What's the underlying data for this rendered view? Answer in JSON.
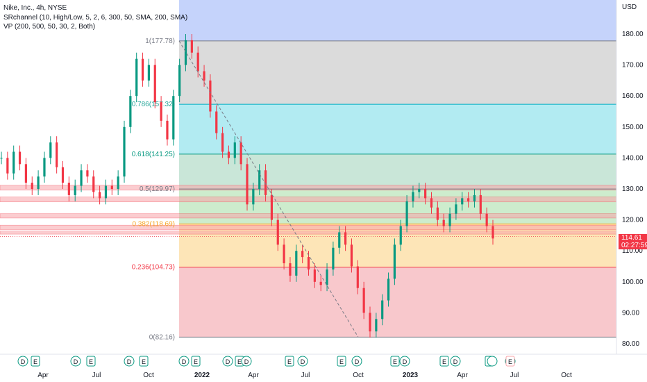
{
  "header": {
    "title": "Nike, Inc., 4h, NYSE",
    "indicator1": "SRchannel (10, High/Low, 5, 2, 6, 300, 50, SMA, 200, SMA)",
    "indicator2": "VP (200, 500, 50, 30, 2, Both)"
  },
  "axis": {
    "currency": "USD",
    "y_ticks": [
      "180.00",
      "170.00",
      "160.00",
      "150.00",
      "140.00",
      "130.00",
      "120.00",
      "110.00",
      "100.00",
      "90.00",
      "80.00"
    ],
    "x_ticks": [
      "Apr",
      "Jul",
      "Oct",
      "2022",
      "Apr",
      "Jul",
      "Oct",
      "2023",
      "Apr",
      "Jul",
      "Oct"
    ]
  },
  "last_price": {
    "value": "114.61",
    "countdown": "02:27:59",
    "color": "#f23645"
  },
  "fib_levels": [
    {
      "label": "1(177.78)",
      "price": 177.78,
      "label_color": "#787b86",
      "line_color": "#787b86",
      "fill": "#dbdbdb"
    },
    {
      "label": "0.786(157.32)",
      "price": 157.32,
      "label_color": "#26a69a",
      "line_color": "#00acc1",
      "fill": "#b2ebf2"
    },
    {
      "label": "0.618(141.25)",
      "price": 141.25,
      "label_color": "#089981",
      "line_color": "#089981",
      "fill": "#c9e6d8"
    },
    {
      "label": "0.5(129.97)",
      "price": 129.97,
      "label_color": "#787b86",
      "line_color": "#787b86",
      "fill": "#cdeccd"
    },
    {
      "label": "0.382(118.69)",
      "price": 118.69,
      "label_color": "#f5a623",
      "line_color": "#ff9800",
      "fill": "#fde5b7"
    },
    {
      "label": "0.236(104.73)",
      "price": 104.73,
      "label_color": "#f23645",
      "line_color": "#f23645",
      "fill": "#f8c8cc"
    },
    {
      "label": "0(82.16)",
      "price": 82.16,
      "label_color": "#787b86",
      "line_color": "#787b86",
      "fill": ""
    }
  ],
  "top_fill_color": "#c5d3fb",
  "sr_zones": [
    {
      "top": 131.2,
      "bottom": 129.6
    },
    {
      "top": 127.4,
      "bottom": 125.8
    },
    {
      "top": 122.0,
      "bottom": 120.6
    },
    {
      "top": 118.3,
      "bottom": 116.9
    },
    {
      "top": 116.4,
      "bottom": 115.4
    }
  ],
  "events": [
    {
      "kind": "D"
    },
    {
      "kind": "E"
    },
    {
      "kind": "D"
    },
    {
      "kind": "E"
    },
    {
      "kind": "D"
    },
    {
      "kind": "E"
    },
    {
      "kind": "D"
    },
    {
      "kind": "E"
    },
    {
      "kind": "D"
    },
    {
      "kind": "E"
    },
    {
      "kind": "D"
    },
    {
      "kind": "E"
    },
    {
      "kind": "D"
    },
    {
      "kind": "E"
    },
    {
      "kind": "D"
    },
    {
      "kind": "E"
    },
    {
      "kind": "D"
    },
    {
      "kind": "E"
    },
    {
      "kind": "D"
    },
    {
      "kind": "E"
    },
    {
      "kind": "split"
    },
    {
      "kind": "D"
    },
    {
      "kind": "E"
    }
  ],
  "chart_data": {
    "type": "line",
    "series": [
      {
        "values": [
          140,
          135,
          142,
          138,
          132,
          130,
          134,
          140,
          145,
          137,
          132,
          128,
          131,
          136,
          134,
          129,
          127,
          131,
          130,
          134,
          150,
          160,
          172,
          165,
          170,
          158,
          152,
          146,
          160,
          170,
          178,
          174,
          168,
          165,
          155,
          148,
          142,
          140,
          145,
          138,
          125,
          130,
          136,
          128,
          120,
          112,
          106,
          102,
          110,
          108,
          104,
          100,
          99,
          104,
          111,
          116,
          112,
          105,
          98,
          90,
          84,
          88,
          94,
          101,
          112,
          118,
          126,
          129,
          130,
          127,
          124,
          120,
          118,
          122,
          125,
          127,
          126,
          128,
          122,
          118,
          114
        ]
      }
    ]
  }
}
